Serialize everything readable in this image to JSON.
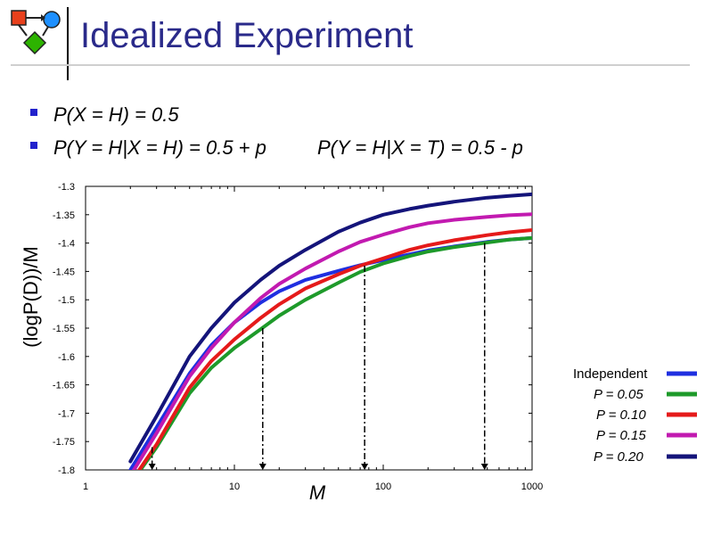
{
  "slide": {
    "title": "Idealized Experiment",
    "bullets": [
      "P(X = H) = 0.5",
      "P(Y = H|X = H) = 0.5 + p",
      "P(Y = H|X = T) = 0.5 - p"
    ]
  },
  "logo": {
    "icon": "flow-diagram-logo-icon",
    "colors": [
      "#e8401c",
      "#1e90ff",
      "#2db300"
    ]
  },
  "chart_data": {
    "type": "line",
    "x_scale": "log",
    "xlim": [
      1,
      1000
    ],
    "ylim": [
      -1.8,
      -1.3
    ],
    "xlabel": "M",
    "ylabel": "(logP(D))/M",
    "x_ticks": [
      "1",
      "10",
      "100",
      "1000"
    ],
    "y_ticks": [
      "-1.3",
      "-1.35",
      "-1.4",
      "-1.45",
      "-1.5",
      "-1.55",
      "-1.6",
      "-1.65",
      "-1.7",
      "-1.75",
      "-1.8"
    ],
    "x": [
      2,
      3,
      5,
      7,
      10,
      15,
      20,
      30,
      50,
      70,
      100,
      150,
      200,
      300,
      500,
      700,
      1000
    ],
    "series": [
      {
        "name": "Independent",
        "color": "#1f2fe0",
        "values": [
          -1.8,
          -1.725,
          -1.63,
          -1.58,
          -1.54,
          -1.505,
          -1.485,
          -1.465,
          -1.449,
          -1.439,
          -1.43,
          -1.42,
          -1.413,
          -1.406,
          -1.398,
          -1.394,
          -1.391
        ]
      },
      {
        "name": "P = 0.05",
        "color": "#1e9a2a",
        "values": [
          -1.825,
          -1.76,
          -1.665,
          -1.62,
          -1.585,
          -1.552,
          -1.528,
          -1.5,
          -1.47,
          -1.451,
          -1.436,
          -1.423,
          -1.415,
          -1.407,
          -1.399,
          -1.394,
          -1.391
        ]
      },
      {
        "name": "P = 0.10",
        "color": "#e51a1a",
        "values": [
          -1.823,
          -1.755,
          -1.655,
          -1.608,
          -1.57,
          -1.532,
          -1.508,
          -1.48,
          -1.455,
          -1.44,
          -1.427,
          -1.412,
          -1.404,
          -1.395,
          -1.386,
          -1.381,
          -1.377
        ]
      },
      {
        "name": "P = 0.15",
        "color": "#c21ab0",
        "values": [
          -1.81,
          -1.735,
          -1.635,
          -1.585,
          -1.54,
          -1.497,
          -1.472,
          -1.445,
          -1.415,
          -1.398,
          -1.385,
          -1.372,
          -1.365,
          -1.359,
          -1.354,
          -1.351,
          -1.349
        ]
      },
      {
        "name": "P = 0.20",
        "color": "#14147a",
        "values": [
          -1.785,
          -1.705,
          -1.6,
          -1.55,
          -1.505,
          -1.465,
          -1.44,
          -1.412,
          -1.38,
          -1.364,
          -1.35,
          -1.34,
          -1.334,
          -1.327,
          -1.32,
          -1.317,
          -1.314
        ]
      }
    ],
    "markers": [
      {
        "x": 2.8,
        "y_top": -1.76,
        "y_bottom": -1.8
      },
      {
        "x": 15.5,
        "y_top": -1.55,
        "y_bottom": -1.8
      },
      {
        "x": 75,
        "y_top": -1.44,
        "y_bottom": -1.8
      },
      {
        "x": 480,
        "y_top": -1.4,
        "y_bottom": -1.8
      }
    ],
    "legend_placement": "right",
    "grid": false
  }
}
